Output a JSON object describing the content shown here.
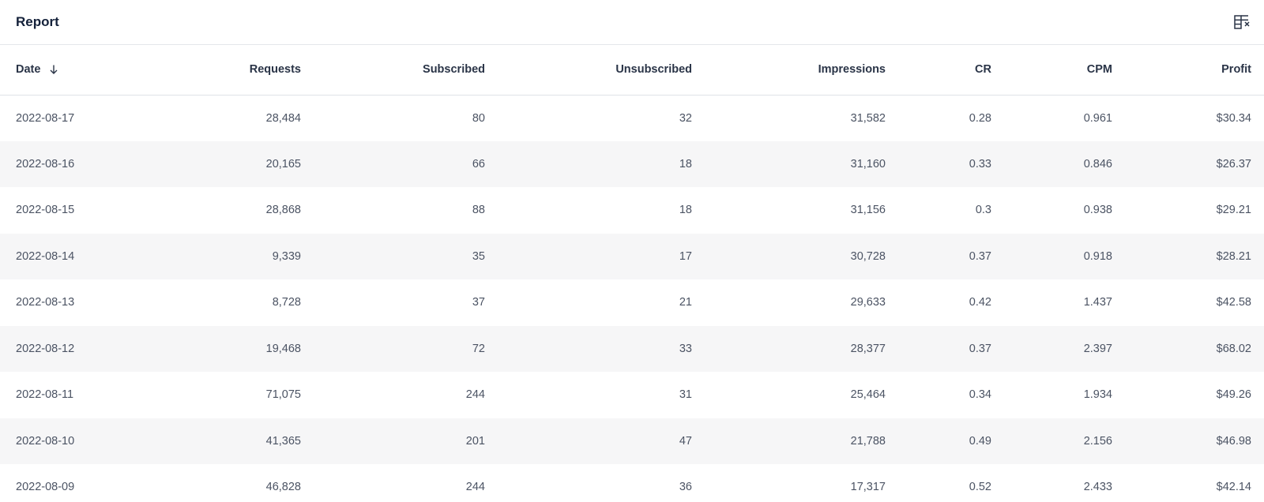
{
  "header": {
    "title": "Report",
    "settings_icon": "column-settings-icon"
  },
  "table": {
    "sort": {
      "column": "Date",
      "direction": "descending",
      "icon": "arrow-down-icon"
    },
    "columns": [
      "Date",
      "Requests",
      "Subscribed",
      "Unsubscribed",
      "Impressions",
      "CR",
      "CPM",
      "Profit"
    ],
    "rows": [
      [
        "2022-08-17",
        "28,484",
        "80",
        "32",
        "31,582",
        "0.28",
        "0.961",
        "$30.34"
      ],
      [
        "2022-08-16",
        "20,165",
        "66",
        "18",
        "31,160",
        "0.33",
        "0.846",
        "$26.37"
      ],
      [
        "2022-08-15",
        "28,868",
        "88",
        "18",
        "31,156",
        "0.3",
        "0.938",
        "$29.21"
      ],
      [
        "2022-08-14",
        "9,339",
        "35",
        "17",
        "30,728",
        "0.37",
        "0.918",
        "$28.21"
      ],
      [
        "2022-08-13",
        "8,728",
        "37",
        "21",
        "29,633",
        "0.42",
        "1.437",
        "$42.58"
      ],
      [
        "2022-08-12",
        "19,468",
        "72",
        "33",
        "28,377",
        "0.37",
        "2.397",
        "$68.02"
      ],
      [
        "2022-08-11",
        "71,075",
        "244",
        "31",
        "25,464",
        "0.34",
        "1.934",
        "$49.26"
      ],
      [
        "2022-08-10",
        "41,365",
        "201",
        "47",
        "21,788",
        "0.49",
        "2.156",
        "$46.98"
      ],
      [
        "2022-08-09",
        "46,828",
        "244",
        "36",
        "17,317",
        "0.52",
        "2.433",
        "$42.14"
      ]
    ]
  }
}
